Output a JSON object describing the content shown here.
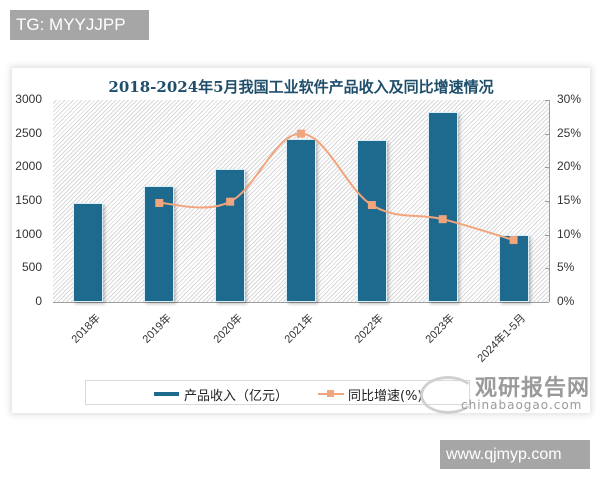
{
  "tags": {
    "top": "TG: MYYJJPP",
    "bottom": "www.qjmyp.com"
  },
  "watermark": {
    "cn": "观研报告网",
    "en": "chinabaogao.com"
  },
  "colors": {
    "bar": "#1d6a8e",
    "line": "#f2a47c",
    "title": "#1f4e6b"
  },
  "chart_data": {
    "type": "bar",
    "title": "2018-2024年5月我国工业软件产品收入及同比增速情况",
    "categories": [
      "2018年",
      "2019年",
      "2020年",
      "2021年",
      "2022年",
      "2023年",
      "2024年1-5月"
    ],
    "series": [
      {
        "name": "产品收入（亿元）",
        "type": "bar",
        "axis": "left",
        "values": [
          1470,
          1720,
          1980,
          2420,
          2410,
          2820,
          1000
        ]
      },
      {
        "name": "同比增速(%)",
        "type": "line",
        "axis": "right",
        "values": [
          null,
          14.7,
          14.9,
          25.0,
          14.4,
          12.3,
          9.2
        ]
      }
    ],
    "xlabel": "",
    "ylabel": "",
    "ylim": [
      0,
      3000
    ],
    "y2lim": [
      0,
      30
    ],
    "yticks": [
      "0",
      "500",
      "1000",
      "1500",
      "2000",
      "2500",
      "3000"
    ],
    "y2ticks": [
      "0%",
      "5%",
      "10%",
      "15%",
      "20%",
      "25%",
      "30%"
    ],
    "legend": [
      "产品收入（亿元）",
      "同比增速(%)"
    ],
    "legend_position": "bottom",
    "grid": false
  }
}
